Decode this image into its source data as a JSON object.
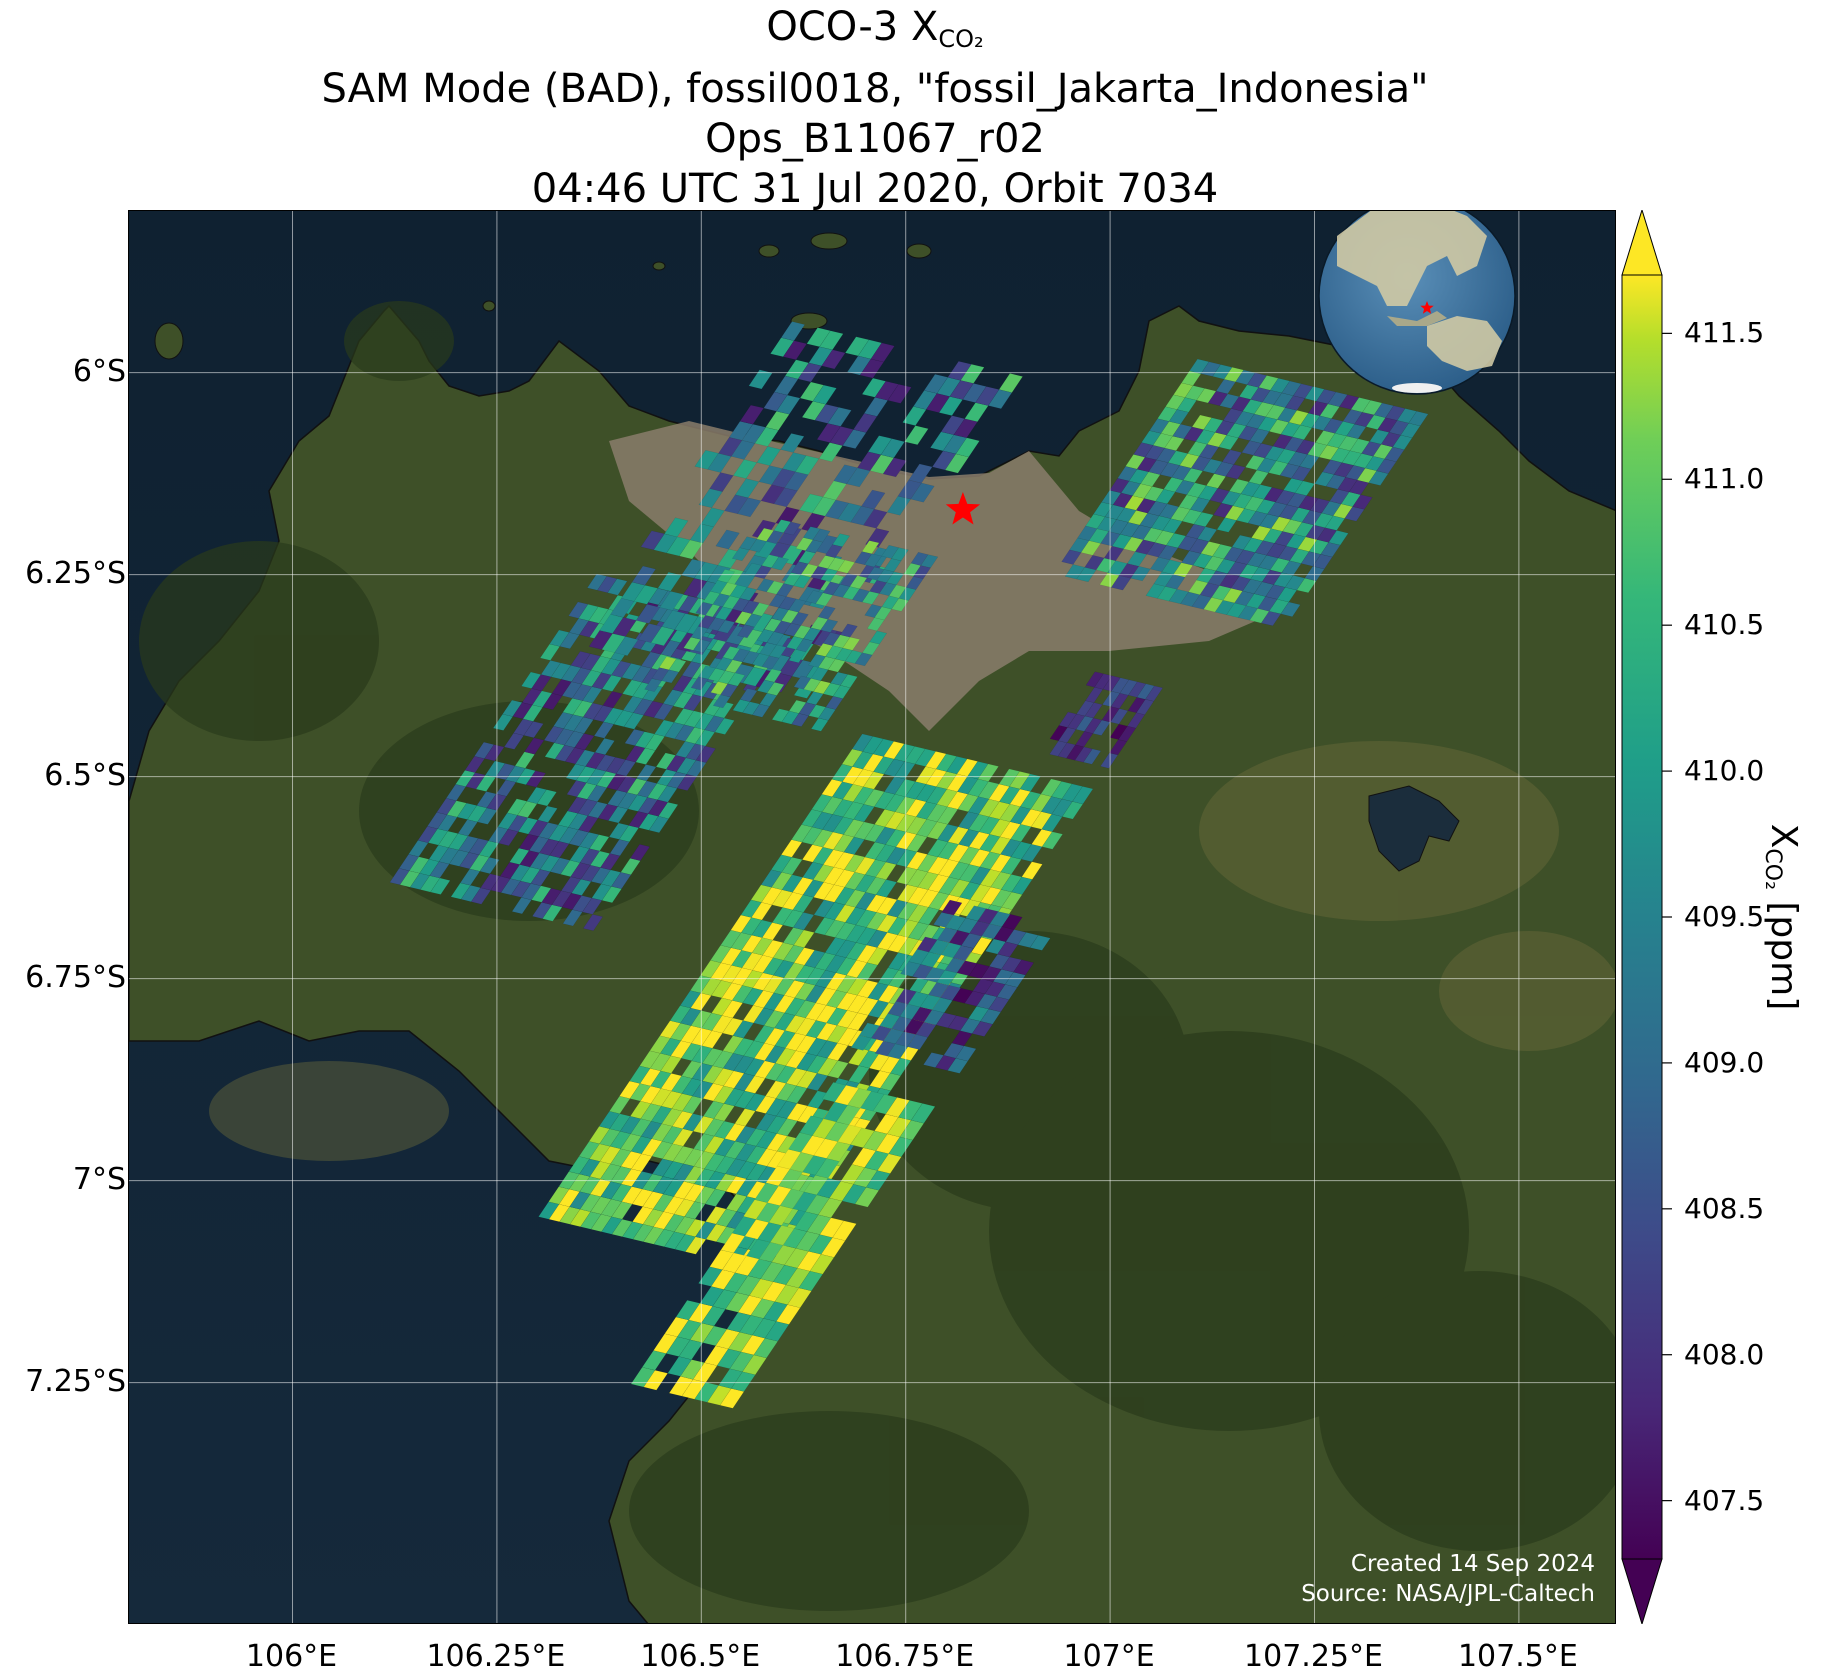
{
  "title": {
    "line1_main": "OCO-3 X",
    "line1_sub": "CO₂",
    "line2": "SAM Mode (BAD), fossil0018, \"fossil_Jakarta_Indonesia\"",
    "line3": "Ops_B11067_r02",
    "line4": "04:46 UTC 31 Jul 2020, Orbit 7034"
  },
  "map": {
    "lon_range": [
      105.8,
      107.62
    ],
    "lat_range": [
      -7.55,
      -5.8
    ],
    "lat_ticks": [
      {
        "value": -6.0,
        "label": "6°S"
      },
      {
        "value": -6.25,
        "label": "6.25°S"
      },
      {
        "value": -6.5,
        "label": "6.5°S"
      },
      {
        "value": -6.75,
        "label": "6.75°S"
      },
      {
        "value": -7.0,
        "label": "7°S"
      },
      {
        "value": -7.25,
        "label": "7.25°S"
      }
    ],
    "lon_ticks": [
      {
        "value": 106.0,
        "label": "106°E"
      },
      {
        "value": 106.25,
        "label": "106.25°E"
      },
      {
        "value": 106.5,
        "label": "106.5°E"
      },
      {
        "value": 106.75,
        "label": "106.75°E"
      },
      {
        "value": 107.0,
        "label": "107°E"
      },
      {
        "value": 107.25,
        "label": "107.25°E"
      },
      {
        "value": 107.5,
        "label": "107.5°E"
      }
    ],
    "target": {
      "lon": 106.82,
      "lat": -6.17,
      "marker": "red-star"
    },
    "credit_line1": "Created 14 Sep 2024",
    "credit_line2": "Source: NASA/JPL-Caltech",
    "colors": {
      "sea": "#13273a",
      "land": "#3e4f26",
      "urban": "#8a7d6b",
      "target": "#ff0000"
    },
    "inset_globe": {
      "center_region": "Southeast Asia",
      "marker": "red-star"
    }
  },
  "colorbar": {
    "label_main": "X",
    "label_sub": "CO₂",
    "label_unit": " [ppm]",
    "min": 407.3,
    "max": 411.7,
    "extend": "both",
    "colormap": "viridis",
    "ticks": [
      {
        "value": 411.5,
        "label": "411.5"
      },
      {
        "value": 411.0,
        "label": "411.0"
      },
      {
        "value": 410.5,
        "label": "410.5"
      },
      {
        "value": 410.0,
        "label": "410.0"
      },
      {
        "value": 409.5,
        "label": "409.5"
      },
      {
        "value": 409.0,
        "label": "409.0"
      },
      {
        "value": 408.5,
        "label": "408.5"
      },
      {
        "value": 408.0,
        "label": "408.0"
      },
      {
        "value": 407.5,
        "label": "407.5"
      }
    ]
  },
  "swaths": [
    {
      "name": "west-upper",
      "center": [
        106.37,
        -6.47
      ],
      "across_deg": 0.3,
      "along_deg": 0.46,
      "rows": 22,
      "cols": 20,
      "density": 0.72,
      "mean": 409.2,
      "spread": 1.6
    },
    {
      "name": "northwest",
      "center": [
        106.62,
        -6.17
      ],
      "across_deg": 0.34,
      "along_deg": 0.48,
      "rows": 20,
      "cols": 18,
      "density": 0.5,
      "mean": 409.3,
      "spread": 1.7
    },
    {
      "name": "central",
      "center": [
        106.61,
        -6.31
      ],
      "across_deg": 0.26,
      "along_deg": 0.26,
      "rows": 16,
      "cols": 18,
      "density": 0.62,
      "mean": 409.8,
      "spread": 1.5
    },
    {
      "name": "south-main",
      "center": [
        106.64,
        -6.78
      ],
      "across_deg": 0.34,
      "along_deg": 0.72,
      "rows": 32,
      "cols": 22,
      "density": 0.93,
      "mean": 410.9,
      "spread": 1.3
    },
    {
      "name": "south-tail",
      "center": [
        106.6,
        -7.08
      ],
      "across_deg": 0.15,
      "along_deg": 0.45,
      "rows": 18,
      "cols": 8,
      "density": 0.9,
      "mean": 411.1,
      "spread": 1.0
    },
    {
      "name": "east-middle",
      "center": [
        106.81,
        -6.76
      ],
      "across_deg": 0.16,
      "along_deg": 0.22,
      "rows": 12,
      "cols": 9,
      "density": 0.8,
      "mean": 408.6,
      "spread": 1.3
    },
    {
      "name": "center-small",
      "center": [
        106.99,
        -6.43
      ],
      "across_deg": 0.1,
      "along_deg": 0.12,
      "rows": 6,
      "cols": 8,
      "density": 0.7,
      "mean": 408.0,
      "spread": 0.8
    },
    {
      "name": "northeast",
      "center": [
        107.16,
        -6.15
      ],
      "across_deg": 0.34,
      "along_deg": 0.32,
      "rows": 18,
      "cols": 20,
      "density": 0.85,
      "mean": 409.6,
      "spread": 1.8
    }
  ]
}
